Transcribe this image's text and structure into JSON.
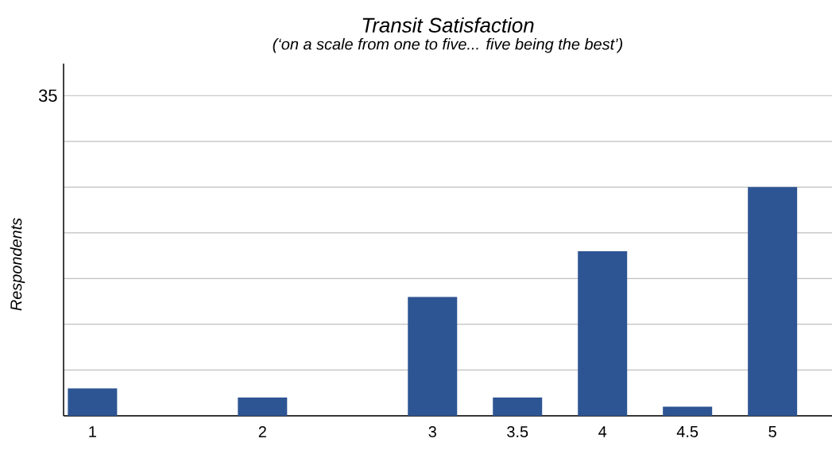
{
  "chart_data": {
    "type": "bar",
    "title": "Transit Satisfaction",
    "subtitle": "(‘on a scale from one to five... five being the best’)",
    "ylabel": "Respondents",
    "x": [
      1,
      2,
      3,
      3.5,
      4,
      4.5,
      5
    ],
    "values": [
      3,
      2,
      13,
      2,
      18,
      1,
      25
    ],
    "color": "#2e5593",
    "xlim": [
      0.83,
      5.35
    ],
    "xticks": [
      1,
      2,
      3,
      3.5,
      4,
      4.5,
      5
    ],
    "ylim": [
      0,
      38.5
    ],
    "yticks": [
      {
        "value": 0,
        "label": null
      },
      {
        "value": 5,
        "label": null
      },
      {
        "value": 10,
        "label": null
      },
      {
        "value": 15,
        "label": null
      },
      {
        "value": 20,
        "label": null
      },
      {
        "value": 25,
        "label": null
      },
      {
        "value": 30,
        "label": null
      },
      35
    ],
    "grid": "y"
  }
}
